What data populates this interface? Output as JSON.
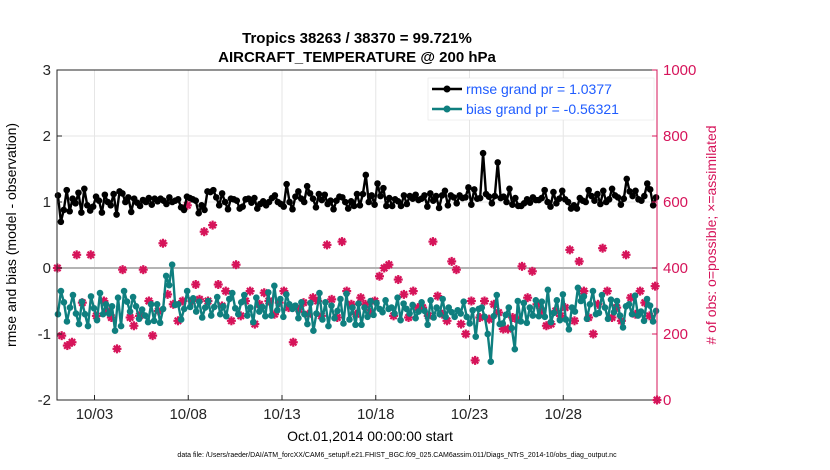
{
  "chart_data": {
    "type": "line",
    "title": "Tropics 38263 / 38370 = 99.721%",
    "subtitle": "AIRCRAFT_TEMPERATURE @ 200 hPa",
    "xlabel": "Oct.01,2014 00:00:00 start",
    "ylabel_left": "rmse and bias (model - observation)",
    "ylabel_right": "# of obs: o=possible; ×=assimilated",
    "x_tick_labels": [
      "10/03",
      "10/08",
      "10/13",
      "10/18",
      "10/23",
      "10/28"
    ],
    "x_tick_values": [
      3,
      8,
      13,
      18,
      23,
      28
    ],
    "xlim": [
      1,
      33
    ],
    "ylim_left": [
      -2,
      3
    ],
    "ylim_right": [
      0,
      1000
    ],
    "y_ticks_left": [
      3,
      2,
      1,
      0,
      -1,
      -2
    ],
    "y_ticks_right": [
      1000,
      800,
      600,
      400,
      200,
      0
    ],
    "legend_location": "top-right",
    "zero_line": 0,
    "colors": {
      "rmse": "#000000",
      "bias": "#0f7f7f",
      "obs": "#d6145a",
      "zero": "#b4b4b4",
      "grid": "#e6e6e6"
    },
    "series": [
      {
        "name": "rmse grand pr = 1.0377",
        "axis": "left",
        "values": [
          1.1,
          0.7,
          0.88,
          1.18,
          0.86,
          1.05,
          0.98,
          1.14,
          0.84,
          1.2,
          0.95,
          0.87,
          0.93,
          1.08,
          1.02,
          0.84,
          1.11,
          1.0,
          0.95,
          1.12,
          0.81,
          1.16,
          1.13,
          1.0,
          1.07,
          0.85,
          1.05,
          0.99,
          0.94,
          1.03,
          1.0,
          1.06,
          0.96,
          1.05,
          1.01,
          1.05,
          1.02,
          0.97,
          1.07,
          1.0,
          1.02,
          1.04,
          0.92,
          0.88,
          1.08,
          1.06,
          1.04,
          1.02,
          0.83,
          0.95,
          0.88,
          1.16,
          1.15,
          1.18,
          1.07,
          0.95,
          1.13,
          1.0,
          0.89,
          1.05,
          1.04,
          1.02,
          0.9,
          0.93,
          1.04,
          1.05,
          0.99,
          1.06,
          0.9,
          0.97,
          1.01,
          0.95,
          1.0,
          1.06,
          1.1,
          1.0,
          0.97,
          0.93,
          1.27,
          1.0,
          0.89,
          1.08,
          1.16,
          1.05,
          1.0,
          1.24,
          1.13,
          1.05,
          0.92,
          1.12,
          1.03,
          1.11,
          0.97,
          1.02,
          0.89,
          1.02,
          1.08,
          1.07,
          1.0,
          0.9,
          1.01,
          0.94,
          1.12,
          0.95,
          1.12,
          1.41,
          1.0,
          1.1,
          0.96,
          1.28,
          1.09,
          1.21,
          0.94,
          1.06,
          0.94,
          1.04,
          1.01,
          0.94,
          1.1,
          0.97,
          1.09,
          1.05,
          1.11,
          1.03,
          1.05,
          1.1,
          0.93,
          1.13,
          1.02,
          1.09,
          0.91,
          1.1,
          1.17,
          0.95,
          1.1,
          1.07,
          0.98,
          1.1,
          1.06,
          1.07,
          1.22,
          0.96,
          1.19,
          1.05,
          1.06,
          1.74,
          1.12,
          1.08,
          0.98,
          1.09,
          1.6,
          1.06,
          1.08,
          1.0,
          1.2,
          0.96,
          1.06,
          0.94,
          0.94,
          0.98,
          1.04,
          0.99,
          1.07,
          1.03,
          1.03,
          1.06,
          1.18,
          1.0,
          0.93,
          1.15,
          0.98,
          1.05,
          1.17,
          1.04,
          1.0,
          0.9,
          0.95,
          0.9,
          1.06,
          1.02,
          1.0,
          1.18,
          1.09,
          1.02,
          1.12,
          0.97,
          1.17,
          1.0,
          1.04,
          1.2,
          1.1,
          1.07,
          0.96,
          1.05,
          1.35,
          1.16,
          1.09,
          1.17,
          1.04,
          1.02,
          1.09,
          1.28,
          1.19,
          0.95,
          1.07
        ]
      },
      {
        "name": "bias grand pr = -0.56321",
        "axis": "left",
        "values": [
          -0.7,
          -0.35,
          -0.52,
          -0.81,
          -0.6,
          -0.41,
          -0.69,
          -0.85,
          -0.51,
          -0.7,
          -0.88,
          -0.43,
          -0.61,
          -0.79,
          -0.38,
          -0.7,
          -0.55,
          -0.69,
          -0.58,
          -0.95,
          -0.45,
          -0.88,
          -0.35,
          -0.51,
          -0.66,
          -0.44,
          -0.58,
          -0.77,
          -0.63,
          -0.72,
          -0.82,
          -0.55,
          -0.8,
          -0.55,
          -0.83,
          -0.62,
          -0.12,
          -0.26,
          0.05,
          -0.56,
          -0.55,
          -0.78,
          -0.62,
          -0.35,
          -0.59,
          -0.46,
          -0.66,
          -0.51,
          -0.75,
          -0.6,
          -0.5,
          -0.72,
          -0.59,
          -0.44,
          -0.7,
          -0.58,
          -0.73,
          -0.47,
          -0.38,
          -0.61,
          -0.7,
          -0.52,
          -0.41,
          -0.72,
          -0.6,
          -0.82,
          -0.45,
          -0.66,
          -0.59,
          -0.73,
          -0.37,
          -0.72,
          -0.27,
          -0.64,
          -0.47,
          -0.74,
          -0.4,
          -0.55,
          -0.62,
          -0.57,
          -0.76,
          -0.52,
          -0.7,
          -0.85,
          -0.53,
          -0.95,
          -0.69,
          -0.38,
          -0.78,
          -0.52,
          -0.88,
          -0.57,
          -0.76,
          -0.65,
          -0.47,
          -0.84,
          -0.39,
          -0.78,
          -0.6,
          -0.86,
          -0.54,
          -0.86,
          -0.6,
          -0.74,
          -0.5,
          -0.71,
          -0.53,
          -0.62,
          -0.67,
          -0.49,
          -0.62,
          -0.6,
          -0.69,
          -0.45,
          -0.79,
          -0.54,
          -0.62,
          -0.69,
          -0.56,
          -0.76,
          -0.66,
          -0.52,
          -0.65,
          -0.86,
          -0.49,
          -0.75,
          -0.6,
          -0.7,
          -0.47,
          -0.74,
          -0.6,
          -0.67,
          -0.74,
          -0.64,
          -0.69,
          -0.51,
          -0.74,
          -0.84,
          -0.64,
          -1.04,
          -0.62,
          -0.6,
          -0.74,
          -1.0,
          -1.42,
          -0.73,
          -0.41,
          -0.85,
          -0.84,
          -0.71,
          -0.6,
          -0.91,
          -1.23,
          -0.5,
          -0.81,
          -0.53,
          -0.83,
          -0.6,
          -0.72,
          -0.49,
          -0.73,
          -0.51,
          -0.74,
          -0.33,
          -0.82,
          -0.68,
          -0.49,
          -0.79,
          -0.4,
          -0.78,
          -0.93,
          -0.6,
          -0.66,
          -0.3,
          -0.5,
          -0.43,
          -0.77,
          -0.55,
          -0.35,
          -0.7,
          -0.68,
          -0.41,
          -0.6,
          -0.77,
          -0.48,
          -0.67,
          -0.5,
          -0.72,
          -0.9,
          -0.58,
          -0.55,
          -0.7,
          -0.42,
          -0.72,
          -0.66,
          -0.8,
          -0.47,
          -0.57,
          -0.81,
          -0.65
        ]
      },
      {
        "name": "assimilated obs count",
        "axis": "right",
        "style": "markers",
        "x": [
          1.02,
          1.25,
          1.55,
          1.8,
          2.05,
          2.35,
          2.8,
          3.1,
          3.5,
          3.7,
          3.9,
          4.2,
          4.5,
          4.9,
          5.1,
          5.4,
          5.6,
          5.9,
          6.1,
          6.4,
          6.65,
          6.9,
          7.2,
          7.45,
          7.7,
          7.95,
          8.2,
          8.4,
          8.6,
          8.85,
          9.05,
          9.3,
          9.6,
          9.8,
          10.0,
          10.3,
          10.55,
          10.8,
          11.05,
          11.3,
          11.55,
          11.8,
          12.05,
          12.3,
          12.6,
          12.85,
          13.1,
          13.35,
          13.6,
          13.9,
          14.15,
          14.4,
          14.65,
          14.9,
          15.1,
          15.4,
          15.65,
          15.95,
          16.2,
          16.45,
          16.7,
          16.95,
          17.2,
          17.45,
          17.7,
          17.95,
          18.2,
          18.45,
          18.7,
          18.95,
          19.2,
          19.5,
          19.75,
          20.0,
          20.25,
          20.5,
          20.8,
          21.05,
          21.3,
          21.55,
          21.8,
          22.05,
          22.3,
          22.55,
          22.8,
          23.1,
          23.3,
          23.55,
          23.8,
          24.05,
          24.3,
          24.55,
          24.8,
          25.05,
          25.3,
          25.55,
          25.8,
          26.1,
          26.35,
          26.6,
          26.85,
          27.1,
          27.35,
          27.6,
          27.85,
          28.1,
          28.35,
          28.6,
          28.85,
          29.1,
          29.35,
          29.6,
          29.85,
          30.1,
          30.35,
          30.6,
          30.85,
          31.1,
          31.35,
          31.6,
          31.85,
          32.1,
          32.35,
          32.6,
          32.9
        ],
        "values": [
          400,
          195,
          165,
          175,
          440,
          295,
          440,
          255,
          300,
          270,
          250,
          155,
          395,
          250,
          225,
          255,
          395,
          300,
          195,
          270,
          475,
          320,
          290,
          240,
          300,
          590,
          300,
          350,
          305,
          510,
          300,
          530,
          350,
          285,
          330,
          240,
          410,
          255,
          300,
          330,
          230,
          290,
          325,
          300,
          260,
          295,
          330,
          280,
          175,
          275,
          295,
          260,
          310,
          300,
          255,
          470,
          305,
          250,
          480,
          330,
          290,
          260,
          310,
          290,
          265,
          300,
          375,
          400,
          410,
          255,
          365,
          320,
          250,
          330,
          280,
          280,
          255,
          480,
          315,
          260,
          240,
          420,
          395,
          230,
          200,
          300,
          120,
          250,
          300,
          245,
          290,
          265,
          215,
          215,
          250,
          245,
          405,
          310,
          390,
          290,
          270,
          225,
          230,
          270,
          255,
          280,
          455,
          240,
          420,
          330,
          250,
          200,
          290,
          460,
          330,
          250,
          280,
          240,
          440,
          310,
          260,
          330,
          295,
          255,
          345
        ]
      },
      {
        "name": "possible obs count",
        "axis": "right",
        "style": "markers",
        "x": [
          33.0
        ],
        "values": [
          0
        ]
      }
    ]
  },
  "footnote": "data file: /Users/raeder/DAI/ATM_forcXX/CAM6_setup/f.e21.FHIST_BGC.f09_025.CAM6assim.011/Diags_NTrS_2014-10/obs_diag_output.nc"
}
